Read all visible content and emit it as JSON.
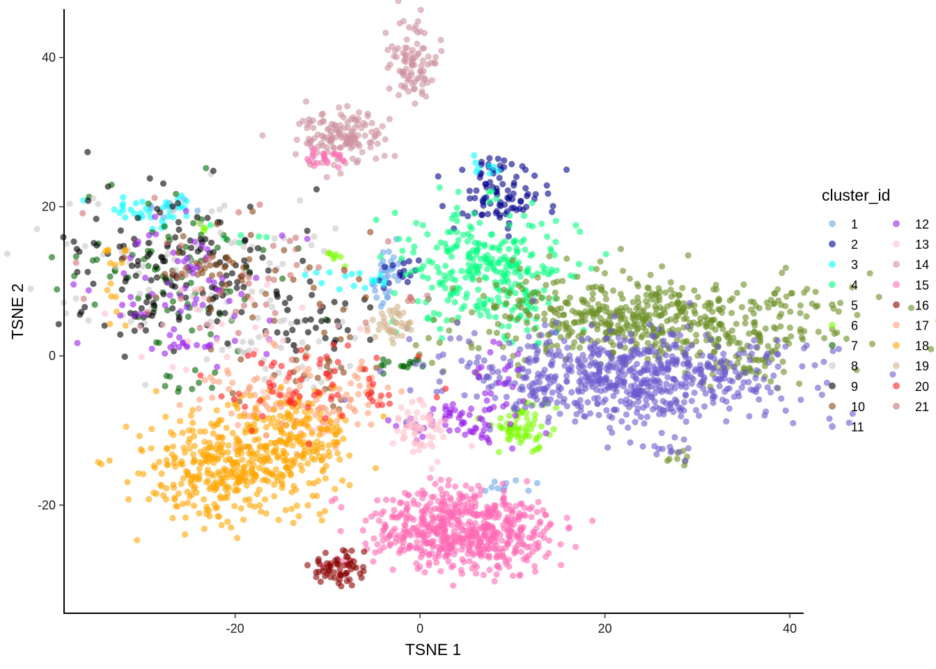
{
  "chart_data": {
    "type": "scatter",
    "title": "",
    "xlabel": "TSNE 1",
    "ylabel": "TSNE 2",
    "xlim": [
      -38.5,
      41.5
    ],
    "ylim": [
      -34.5,
      46.5
    ],
    "xticks": [
      -20,
      0,
      20,
      40
    ],
    "yticks": [
      -20,
      0,
      20,
      40
    ],
    "grid": false,
    "legend_position": "right",
    "legend": {
      "title": "cluster_id",
      "entries": [
        {
          "id": "1",
          "color": "#6CA6EB"
        },
        {
          "id": "2",
          "color": "#00008B"
        },
        {
          "id": "3",
          "color": "#00FFFF"
        },
        {
          "id": "4",
          "color": "#00FF7F"
        },
        {
          "id": "5",
          "color": "#6B8E23"
        },
        {
          "id": "6",
          "color": "#7CFC00"
        },
        {
          "id": "7",
          "color": "#006400"
        },
        {
          "id": "8",
          "color": "#C8C8C8"
        },
        {
          "id": "9",
          "color": "#000000"
        },
        {
          "id": "10",
          "color": "#8B4513"
        },
        {
          "id": "11",
          "color": "#6A5ACD"
        },
        {
          "id": "12",
          "color": "#9A1EEB"
        },
        {
          "id": "13",
          "color": "#FFC0CB"
        },
        {
          "id": "14",
          "color": "#CD919E"
        },
        {
          "id": "15",
          "color": "#FF69B4"
        },
        {
          "id": "16",
          "color": "#8B0000"
        },
        {
          "id": "17",
          "color": "#FFA07A"
        },
        {
          "id": "18",
          "color": "#FFA500"
        },
        {
          "id": "19",
          "color": "#D2B48C"
        },
        {
          "id": "20",
          "color": "#FF2020"
        },
        {
          "id": "21",
          "color": "#CD7070"
        }
      ]
    },
    "clusters": [
      {
        "id": "1",
        "regions": [
          [
            -3.5,
            12,
            0.6,
            1.5,
            20
          ],
          [
            -4,
            8,
            0.8,
            1.0,
            10
          ],
          [
            -27,
            20,
            2,
            1,
            8
          ],
          [
            8,
            -17.5,
            4,
            0.5,
            10
          ]
        ]
      },
      {
        "id": "2",
        "regions": [
          [
            8.5,
            22,
            2.5,
            2.3,
            90
          ],
          [
            -2,
            11.5,
            1.5,
            0.7,
            12
          ],
          [
            -4,
            9.5,
            0.5,
            0.5,
            3
          ]
        ]
      },
      {
        "id": "3",
        "regions": [
          [
            -29,
            19.5,
            3,
            1,
            35
          ],
          [
            6.5,
            25.5,
            1,
            0.6,
            8
          ],
          [
            -5.5,
            10,
            1.5,
            0.7,
            8
          ],
          [
            -9,
            10.5,
            2,
            1,
            8
          ]
        ]
      },
      {
        "id": "4",
        "regions": [
          [
            7,
            11.5,
            4.5,
            4,
            280
          ],
          [
            -20,
            16,
            2,
            1,
            6
          ],
          [
            12,
            5,
            1.5,
            2,
            15
          ]
        ]
      },
      {
        "id": "5",
        "regions": [
          [
            24,
            5,
            10,
            3,
            520
          ],
          [
            35,
            0,
            3,
            2,
            60
          ],
          [
            27.5,
            -14,
            1,
            0.6,
            8
          ]
        ]
      },
      {
        "id": "6",
        "regions": [
          [
            11,
            -10,
            1.5,
            1.5,
            60
          ],
          [
            -9,
            13.5,
            0.5,
            0.7,
            8
          ],
          [
            -24,
            17.5,
            0.5,
            0.5,
            5
          ],
          [
            13,
            -7,
            1.5,
            1,
            8
          ]
        ]
      },
      {
        "id": "7",
        "regions": [
          [
            -26,
            11,
            6,
            5,
            80
          ],
          [
            -2,
            -1,
            2,
            0.6,
            15
          ],
          [
            -25,
            -3,
            1.5,
            2,
            10
          ]
        ]
      },
      {
        "id": "8",
        "regions": [
          [
            -25,
            12,
            8,
            5,
            80
          ],
          [
            -16,
            0,
            5,
            3,
            40
          ]
        ]
      },
      {
        "id": "9",
        "regions": [
          [
            -25,
            11,
            7,
            5,
            150
          ],
          [
            -11,
            5,
            3,
            2,
            30
          ]
        ]
      },
      {
        "id": "10",
        "regions": [
          [
            -20,
            10,
            6,
            4,
            50
          ],
          [
            -12,
            -3,
            4,
            3,
            30
          ]
        ]
      },
      {
        "id": "11",
        "regions": [
          [
            23,
            -3,
            9,
            3,
            650
          ],
          [
            27,
            -13,
            1,
            0.5,
            10
          ]
        ]
      },
      {
        "id": "12",
        "regions": [
          [
            -26,
            10,
            5,
            5,
            60
          ],
          [
            4,
            -9,
            4,
            1.5,
            60
          ],
          [
            8,
            -3,
            1.5,
            2.5,
            20
          ],
          [
            -25,
            1.5,
            2,
            0.5,
            15
          ]
        ]
      },
      {
        "id": "13",
        "regions": [
          [
            0.5,
            -9.5,
            1.5,
            2,
            60
          ],
          [
            -20,
            3,
            6,
            3,
            30
          ]
        ]
      },
      {
        "id": "14",
        "regions": [
          [
            -8.5,
            29.5,
            2.5,
            1.8,
            140
          ],
          [
            -0.5,
            39.5,
            1.2,
            2.5,
            90
          ]
        ]
      },
      {
        "id": "15",
        "regions": [
          [
            4.5,
            -23.5,
            5,
            2.7,
            600
          ],
          [
            -9.5,
            26.5,
            1.5,
            0.8,
            20
          ]
        ]
      },
      {
        "id": "16",
        "regions": [
          [
            -9,
            -28.5,
            1.8,
            1.2,
            60
          ]
        ]
      },
      {
        "id": "17",
        "regions": [
          [
            -14,
            -6,
            5,
            3,
            120
          ],
          [
            -6,
            -6,
            2,
            2,
            20
          ]
        ]
      },
      {
        "id": "18",
        "regions": [
          [
            -21,
            -15,
            5,
            3.5,
            360
          ],
          [
            -13,
            -11,
            3,
            3,
            160
          ],
          [
            -33,
            10,
            1,
            3,
            15
          ]
        ]
      },
      {
        "id": "19",
        "regions": [
          [
            -3,
            4,
            1,
            1.3,
            40
          ]
        ]
      },
      {
        "id": "20",
        "regions": [
          [
            -12,
            -3,
            5,
            3,
            60
          ],
          [
            -4,
            -6,
            1,
            1,
            8
          ]
        ]
      },
      {
        "id": "21",
        "regions": [
          [
            -22,
            10,
            8,
            5,
            40
          ],
          [
            0,
            7.5,
            1,
            0.5,
            6
          ]
        ]
      }
    ]
  }
}
